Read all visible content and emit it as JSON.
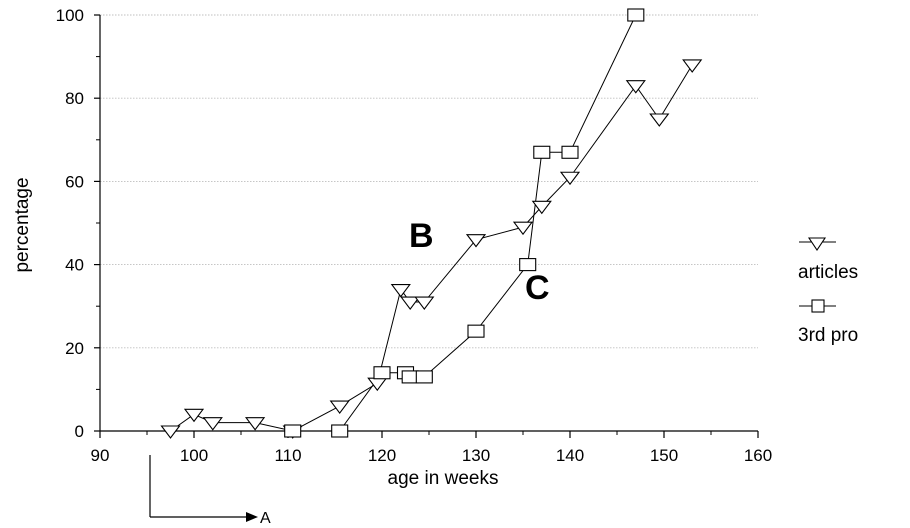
{
  "chart_data": {
    "type": "line",
    "title": "",
    "xlabel": "age in weeks",
    "ylabel": "percentage",
    "xlim": [
      90,
      160
    ],
    "ylim": [
      0,
      100
    ],
    "x_ticks": [
      90,
      100,
      110,
      120,
      130,
      140,
      150,
      160
    ],
    "y_ticks": [
      0,
      20,
      40,
      60,
      80,
      100
    ],
    "grid": "horizontal",
    "legend_position": "right",
    "series": [
      {
        "name": "articles",
        "marker": "triangle-down",
        "color": "#000000",
        "points": [
          {
            "x": 97.5,
            "y": 0
          },
          {
            "x": 100,
            "y": 4
          },
          {
            "x": 102,
            "y": 2
          },
          {
            "x": 106.5,
            "y": 2
          },
          {
            "x": 110.5,
            "y": 0
          },
          {
            "x": 115.5,
            "y": 6
          },
          {
            "x": 119.5,
            "y": 11.5
          },
          {
            "x": 122,
            "y": 34
          },
          {
            "x": 123,
            "y": 31
          },
          {
            "x": 124.5,
            "y": 31
          },
          {
            "x": 130,
            "y": 46
          },
          {
            "x": 135,
            "y": 49
          },
          {
            "x": 137,
            "y": 54
          },
          {
            "x": 140,
            "y": 61
          },
          {
            "x": 147,
            "y": 83
          },
          {
            "x": 149.5,
            "y": 75
          },
          {
            "x": 153,
            "y": 88
          }
        ]
      },
      {
        "name": "3rd pro",
        "marker": "square",
        "color": "#000000",
        "points": [
          {
            "x": 110.5,
            "y": 0
          },
          {
            "x": 115.5,
            "y": 0
          },
          {
            "x": 120,
            "y": 14
          },
          {
            "x": 122.5,
            "y": 14
          },
          {
            "x": 123,
            "y": 13
          },
          {
            "x": 124.5,
            "y": 13
          },
          {
            "x": 130,
            "y": 24
          },
          {
            "x": 135.5,
            "y": 40
          },
          {
            "x": 137,
            "y": 67
          },
          {
            "x": 140,
            "y": 67
          },
          {
            "x": 147,
            "y": 100
          }
        ]
      }
    ],
    "annotations": [
      {
        "text": "B",
        "x": 128.5,
        "y": 46
      },
      {
        "text": "C",
        "x": 138,
        "y": 34
      }
    ],
    "marker_label": {
      "text": "A",
      "x": 95
    }
  }
}
